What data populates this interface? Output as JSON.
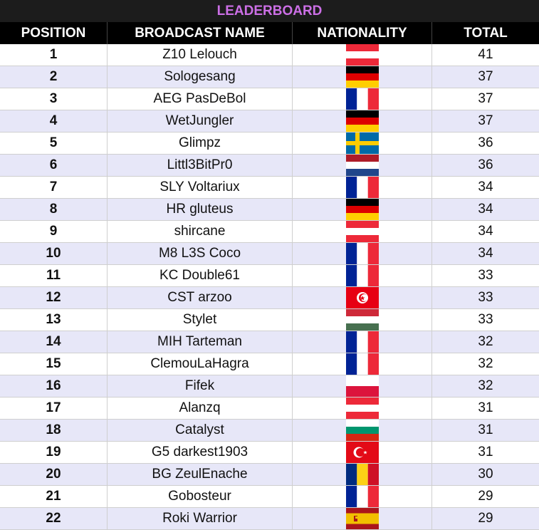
{
  "title": "LEADERBOARD",
  "columns": {
    "position": "POSITION",
    "name": "BROADCAST NAME",
    "nationality": "NATIONALITY",
    "total": "TOTAL"
  },
  "rows": [
    {
      "position": "1",
      "name": "Z10 Lelouch",
      "flag": "austria",
      "total": "41"
    },
    {
      "position": "2",
      "name": "Sologesang",
      "flag": "germany",
      "total": "37"
    },
    {
      "position": "3",
      "name": "AEG PasDeBol",
      "flag": "france",
      "total": "37"
    },
    {
      "position": "4",
      "name": "WetJungler",
      "flag": "germany",
      "total": "37"
    },
    {
      "position": "5",
      "name": "Glimpz",
      "flag": "sweden",
      "total": "36"
    },
    {
      "position": "6",
      "name": "Littl3BitPr0",
      "flag": "netherlands",
      "total": "36"
    },
    {
      "position": "7",
      "name": "SLY Voltariux",
      "flag": "france",
      "total": "34"
    },
    {
      "position": "8",
      "name": "HR gluteus",
      "flag": "germany",
      "total": "34"
    },
    {
      "position": "9",
      "name": "shircane",
      "flag": "austria",
      "total": "34"
    },
    {
      "position": "10",
      "name": "M8 L3S Coco",
      "flag": "france",
      "total": "34"
    },
    {
      "position": "11",
      "name": "KC Double61",
      "flag": "france",
      "total": "33"
    },
    {
      "position": "12",
      "name": "CST arzoo",
      "flag": "tunisia",
      "total": "33"
    },
    {
      "position": "13",
      "name": "Stylet",
      "flag": "hungary",
      "total": "33"
    },
    {
      "position": "14",
      "name": "MIH Tarteman",
      "flag": "france",
      "total": "32"
    },
    {
      "position": "15",
      "name": "ClemouLaHagra",
      "flag": "france",
      "total": "32"
    },
    {
      "position": "16",
      "name": "Fifek",
      "flag": "poland",
      "total": "32"
    },
    {
      "position": "17",
      "name": "Alanzq",
      "flag": "austria",
      "total": "31"
    },
    {
      "position": "18",
      "name": "Catalyst",
      "flag": "bulgaria",
      "total": "31"
    },
    {
      "position": "19",
      "name": "G5 darkest1903",
      "flag": "turkey",
      "total": "31"
    },
    {
      "position": "20",
      "name": "BG ZeulEnache",
      "flag": "romania",
      "total": "30"
    },
    {
      "position": "21",
      "name": "Gobosteur",
      "flag": "france",
      "total": "29"
    },
    {
      "position": "22",
      "name": "Roki Warrior",
      "flag": "spain",
      "total": "29"
    }
  ]
}
